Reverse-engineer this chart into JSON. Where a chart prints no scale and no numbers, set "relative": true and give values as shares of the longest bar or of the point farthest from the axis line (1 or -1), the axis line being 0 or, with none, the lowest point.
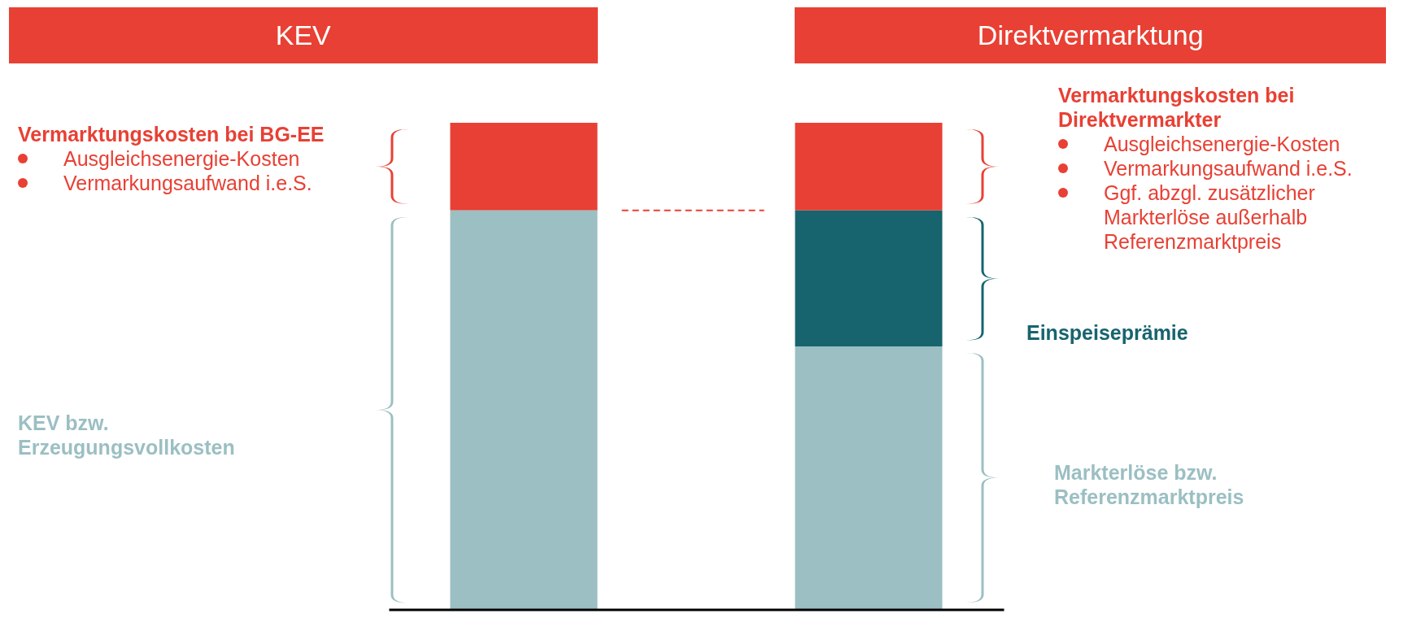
{
  "chart_data": {
    "type": "bar",
    "stacked": true,
    "relative": true,
    "categories": [
      "KEV",
      "Direktvermarktung"
    ],
    "series": [
      {
        "color": "#9bbfc3",
        "values": [
          0.82,
          0.54
        ]
      },
      {
        "color": "#17646e",
        "values": [
          null,
          0.28
        ]
      },
      {
        "color": "#e84034",
        "values": [
          0.18,
          0.18
        ]
      }
    ],
    "ref_lines": [
      {
        "axis": "y",
        "value": 0.82,
        "color": "#e84034",
        "line_style": "dashed"
      }
    ],
    "annotations": [
      "Vermarktungskosten bei BG-EE",
      "Ausgleichsenergie-Kosten",
      "Vermarkungsaufwand i.e.S.",
      "KEV bzw. Erzeugungsvollkosten",
      "Vermarktungskosten bei Direktvermarkter",
      "Ausgleichsenergie-Kosten",
      "Vermarkungsaufwand i.e.S.",
      "Ggf. abzgl. zusätzlicher Markterlöse außerhalb Referenzmarktpreis",
      "Einspeiseprämie",
      "Markterlöse bzw. Referenzmarktpreis"
    ]
  }
}
